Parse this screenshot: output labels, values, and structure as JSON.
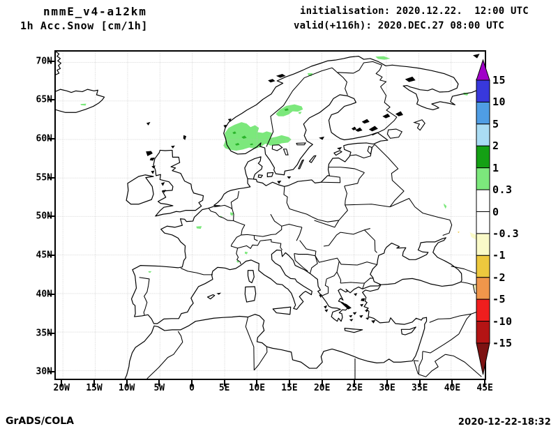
{
  "header": {
    "model": "nmmE_v4-a12km",
    "variable": "1h Acc.Snow [cm/1h]",
    "init_line": "initialisation: 2020.12.22.  12:00 UTC",
    "valid_line": "valid(+116h): 2020.DEC.27 08:00 UTC"
  },
  "footer": {
    "left": "GrADS/COLA",
    "right": "2020-12-22-18:32"
  },
  "map": {
    "axes": {
      "lat_ticks": [
        {
          "value": 70,
          "label": "70N"
        },
        {
          "value": 65,
          "label": "65N"
        },
        {
          "value": 60,
          "label": "60N"
        },
        {
          "value": 55,
          "label": "55N"
        },
        {
          "value": 50,
          "label": "50N"
        },
        {
          "value": 45,
          "label": "45N"
        },
        {
          "value": 40,
          "label": "40N"
        },
        {
          "value": 35,
          "label": "35N"
        },
        {
          "value": 30,
          "label": "30N"
        }
      ],
      "lon_ticks": [
        {
          "value": -20,
          "label": "20W"
        },
        {
          "value": -15,
          "label": "15W"
        },
        {
          "value": -10,
          "label": "10W"
        },
        {
          "value": -5,
          "label": "5W"
        },
        {
          "value": 0,
          "label": "0"
        },
        {
          "value": 5,
          "label": "5E"
        },
        {
          "value": 10,
          "label": "10E"
        },
        {
          "value": 15,
          "label": "15E"
        },
        {
          "value": 20,
          "label": "20E"
        },
        {
          "value": 25,
          "label": "25E"
        },
        {
          "value": 30,
          "label": "30E"
        },
        {
          "value": 35,
          "label": "35E"
        },
        {
          "value": 40,
          "label": "40E"
        },
        {
          "value": 45,
          "label": "45E"
        }
      ]
    },
    "colors": {
      "grid": "#b8b8b8",
      "coast": "#000000",
      "snow_light": "#7ce87c",
      "snow_dark": "#2cb42c",
      "neg_light": "#fafac8",
      "neg_gold": "#edc83e",
      "background": "#ffffff"
    }
  },
  "colorbar": {
    "tick_labels": [
      "15",
      "10",
      "5",
      "2",
      "1",
      "0.3",
      "0",
      "-0.3",
      "-1",
      "-2",
      "-5",
      "-10",
      "-15"
    ],
    "band_colors": [
      "#a000c8",
      "#3838dc",
      "#4f9de4",
      "#aadcf4",
      "#14a014",
      "#7ce87c",
      "#ffffff",
      "#ffffff",
      "#fafac8",
      "#edc83e",
      "#f0964b",
      "#f01e1e",
      "#b41414",
      "#7d1212"
    ]
  },
  "chart_data": {
    "type": "heatmap",
    "variable": "1h accumulated snow",
    "units": "cm/1h",
    "title": "1h Acc.Snow [cm/1h]",
    "levels": [
      -15,
      -10,
      -5,
      -2,
      -1,
      -0.3,
      0,
      0.3,
      1,
      2,
      5,
      10,
      15
    ],
    "lon_range": [
      -20,
      45
    ],
    "lat_range": [
      30,
      70
    ],
    "shaded_regions": [
      {
        "area": "southern Norway and southwest Sweden (58.5-62.5N, 5-15E)",
        "value_range": "0.3 to 1"
      },
      {
        "area": "central Sweden (63-64.5N, 13-17E)",
        "value_range": "0.3 to 1"
      },
      {
        "area": "small spots: northern Norway, Troms, Iceland, Kola, Belgium, Paris basin, western Alps, NW Spain, Voronezh region",
        "value_range": "0.3 to 1"
      },
      {
        "area": "eastern edge / Caucasus strip (43-45E, 37-48N)",
        "value_range": "-1 to -0.3"
      }
    ]
  }
}
